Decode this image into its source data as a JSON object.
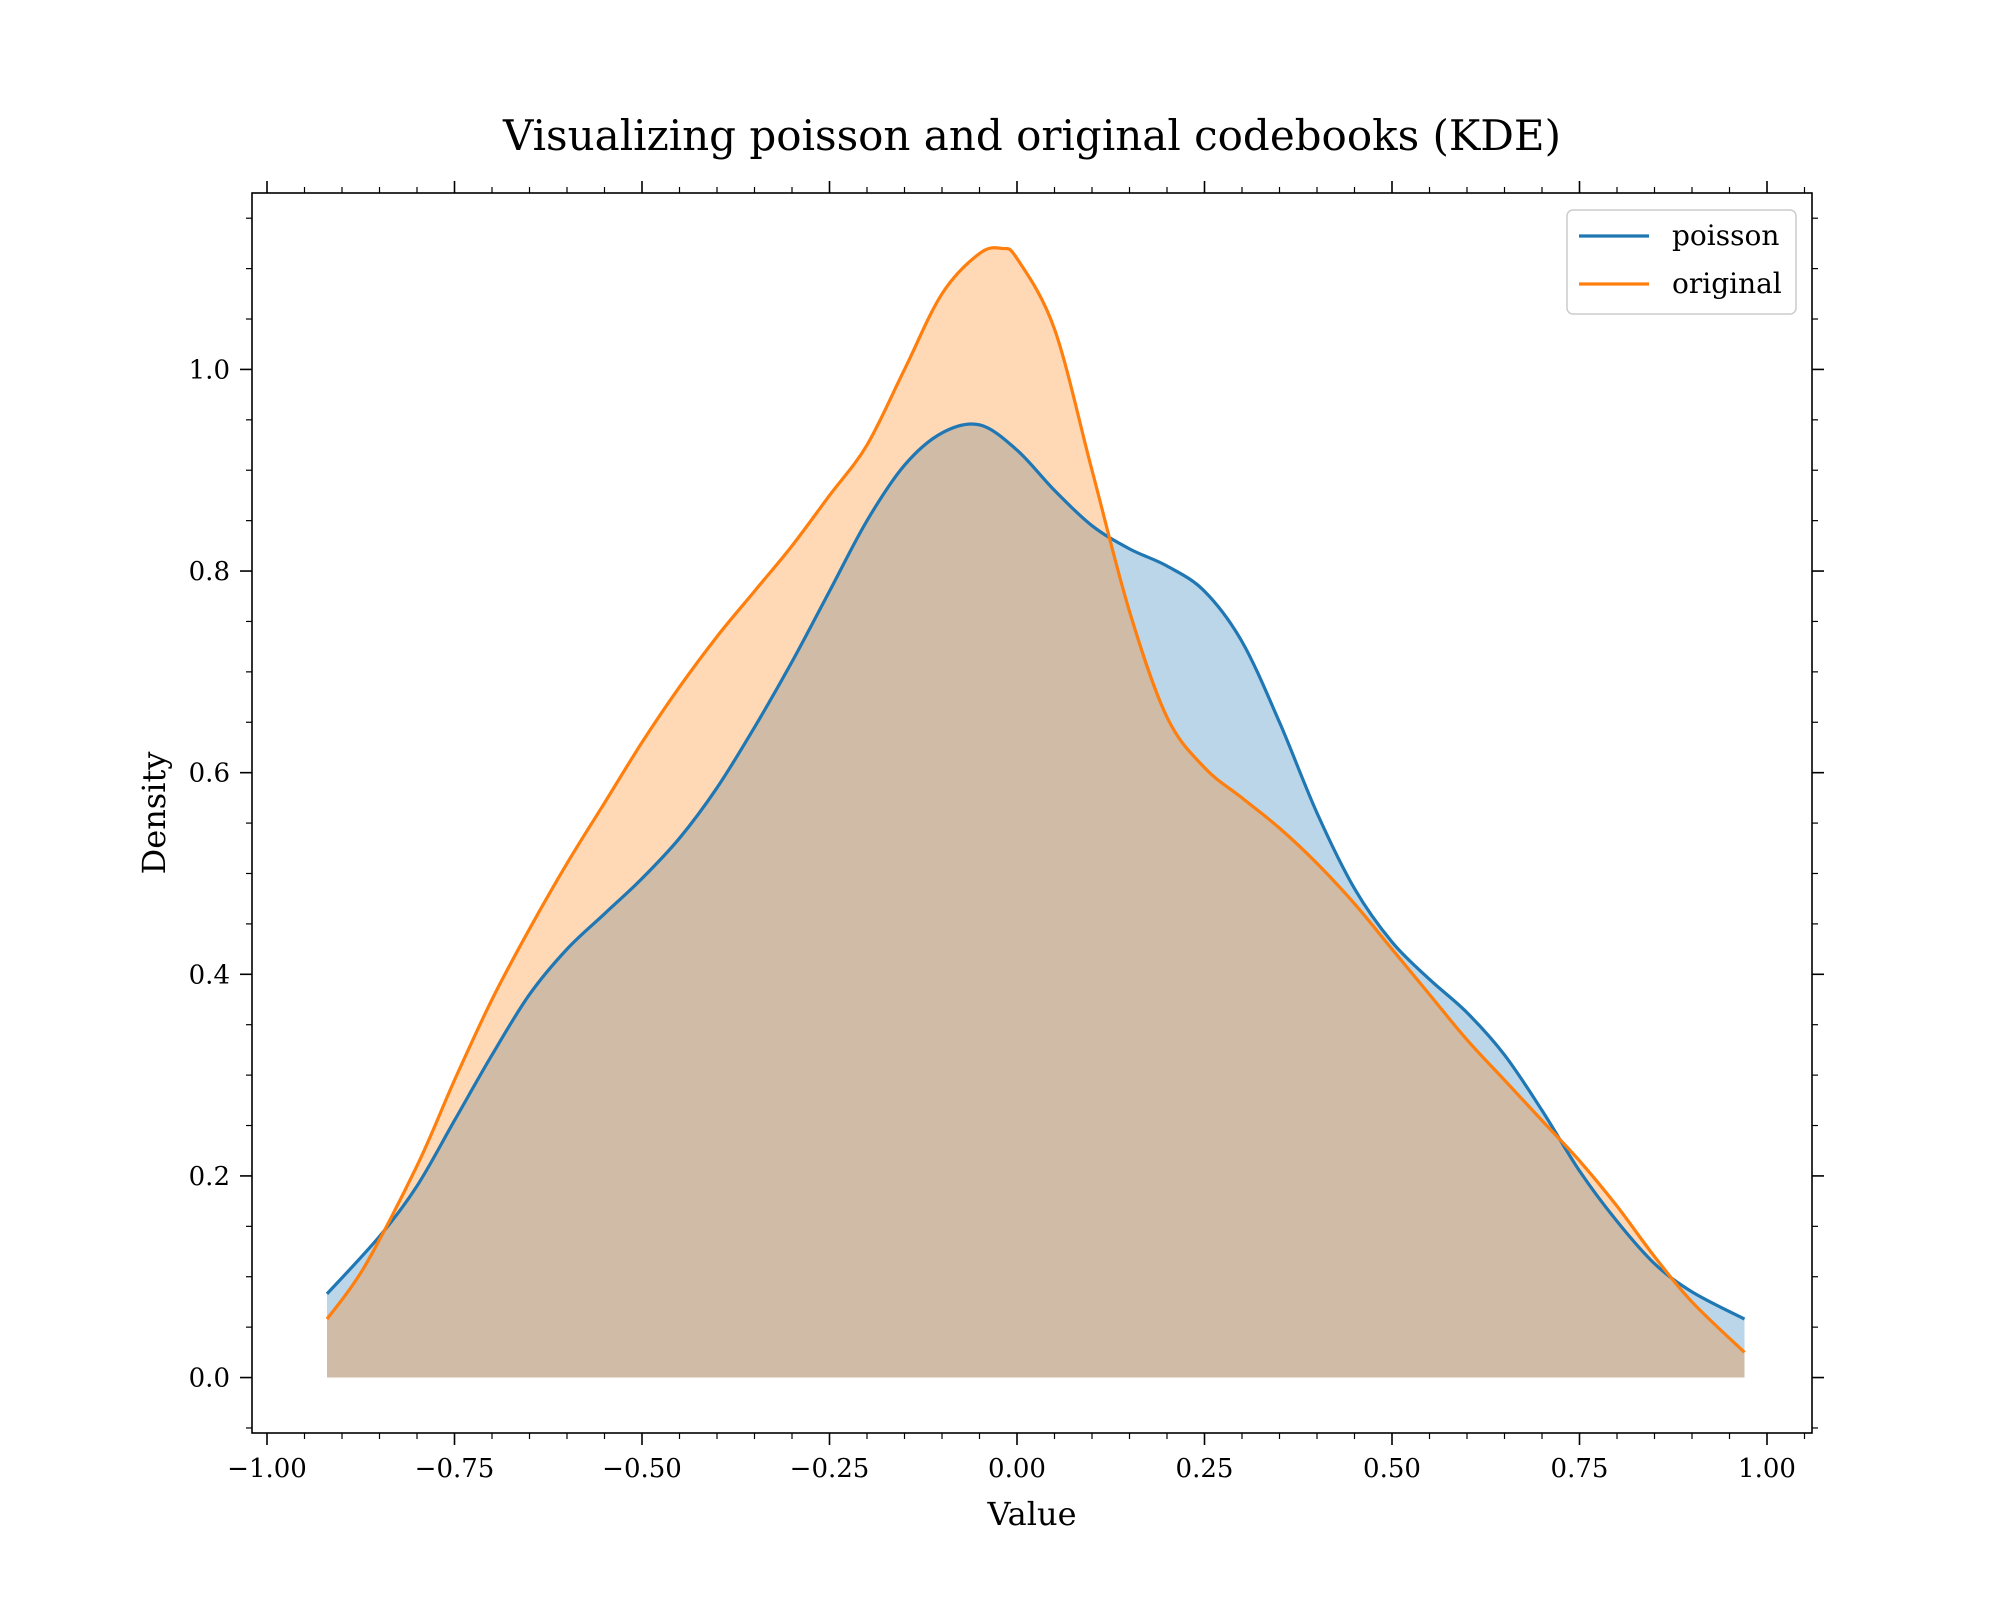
{
  "chart_data": {
    "type": "area",
    "title": "Visualizing poisson and original codebooks (KDE)",
    "xlabel": "Value",
    "ylabel": "Density",
    "xlim": [
      -1.02,
      1.06
    ],
    "ylim": [
      -0.055,
      1.175
    ],
    "xticks": [
      -1.0,
      -0.75,
      -0.5,
      -0.25,
      0.0,
      0.25,
      0.5,
      0.75,
      1.0
    ],
    "xtick_labels": [
      "−1.00",
      "−0.75",
      "−0.50",
      "−0.25",
      "0.00",
      "0.25",
      "0.50",
      "0.75",
      "1.00"
    ],
    "yticks": [
      0.0,
      0.2,
      0.4,
      0.6,
      0.8,
      1.0
    ],
    "ytick_labels": [
      "0.0",
      "0.2",
      "0.4",
      "0.6",
      "0.8",
      "1.0"
    ],
    "grid": false,
    "legend_position": "top-right",
    "series": [
      {
        "name": "poisson",
        "color": "#1f77b4",
        "fill_opacity": 0.3,
        "x": [
          -0.92,
          -0.85,
          -0.8,
          -0.75,
          -0.7,
          -0.65,
          -0.6,
          -0.55,
          -0.5,
          -0.45,
          -0.4,
          -0.35,
          -0.3,
          -0.25,
          -0.2,
          -0.15,
          -0.1,
          -0.05,
          0.0,
          0.05,
          0.1,
          0.15,
          0.2,
          0.25,
          0.3,
          0.35,
          0.4,
          0.45,
          0.5,
          0.55,
          0.6,
          0.65,
          0.7,
          0.75,
          0.8,
          0.85,
          0.9,
          0.97
        ],
        "y": [
          0.083,
          0.14,
          0.19,
          0.255,
          0.32,
          0.38,
          0.425,
          0.46,
          0.495,
          0.535,
          0.585,
          0.645,
          0.71,
          0.78,
          0.85,
          0.905,
          0.937,
          0.945,
          0.92,
          0.88,
          0.845,
          0.822,
          0.805,
          0.78,
          0.73,
          0.65,
          0.56,
          0.485,
          0.432,
          0.395,
          0.362,
          0.32,
          0.265,
          0.205,
          0.155,
          0.113,
          0.085,
          0.058
        ]
      },
      {
        "name": "original",
        "color": "#ff7f0e",
        "fill_opacity": 0.3,
        "x": [
          -0.92,
          -0.87,
          -0.8,
          -0.75,
          -0.7,
          -0.65,
          -0.6,
          -0.55,
          -0.5,
          -0.45,
          -0.4,
          -0.35,
          -0.3,
          -0.25,
          -0.2,
          -0.15,
          -0.1,
          -0.05,
          -0.02,
          0.0,
          0.05,
          0.1,
          0.15,
          0.2,
          0.25,
          0.3,
          0.35,
          0.4,
          0.45,
          0.5,
          0.55,
          0.6,
          0.65,
          0.7,
          0.75,
          0.8,
          0.85,
          0.9,
          0.97
        ],
        "y": [
          0.058,
          0.11,
          0.21,
          0.295,
          0.375,
          0.445,
          0.51,
          0.57,
          0.63,
          0.685,
          0.735,
          0.78,
          0.825,
          0.875,
          0.925,
          1.0,
          1.075,
          1.115,
          1.12,
          1.11,
          1.04,
          0.9,
          0.76,
          0.655,
          0.605,
          0.575,
          0.545,
          0.51,
          0.47,
          0.425,
          0.38,
          0.335,
          0.295,
          0.255,
          0.215,
          0.17,
          0.12,
          0.075,
          0.025
        ]
      }
    ]
  }
}
